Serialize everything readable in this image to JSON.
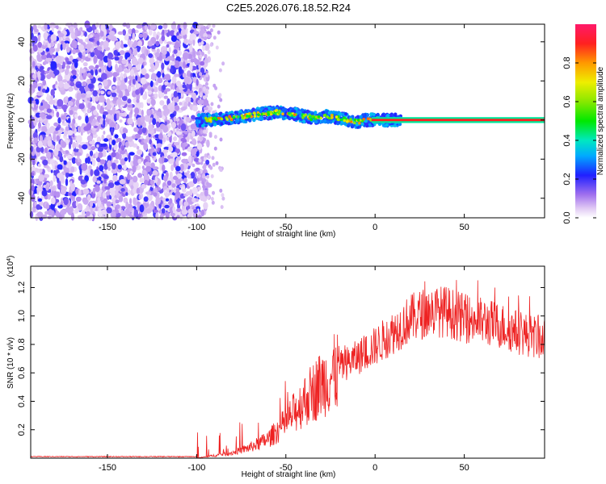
{
  "title": "C2E5.2026.076.18.52.R24",
  "chart_data": [
    {
      "type": "heatmap",
      "xlabel": "Height of straight line (km)",
      "ylabel": "Frequency (Hz)",
      "xlim": [
        -193,
        95
      ],
      "ylim": [
        -50,
        49
      ],
      "x_ticks": [
        "-150",
        "-100",
        "-50",
        "0",
        "50"
      ],
      "y_ticks": [
        "40",
        "20",
        "0",
        "-20",
        "-40"
      ],
      "colorbar": {
        "label": "Normalized spectral amplitude",
        "range": [
          0,
          1
        ],
        "ticks": [
          "0.0",
          "0.2",
          "0.4",
          "0.6",
          "0.8"
        ]
      },
      "ridge": {
        "description_points_x": [
          -95,
          -80,
          -65,
          -55,
          -45,
          -35,
          -28,
          -20,
          -10,
          -5,
          0,
          95
        ],
        "description_points_y": [
          0,
          1,
          3,
          4,
          3,
          1,
          2,
          1,
          -1,
          0,
          0,
          0
        ]
      }
    },
    {
      "type": "line",
      "xlabel": "Height of straight line (km)",
      "ylabel": "SNR (10 * v/v)",
      "exponent_label": "(x10",
      "exponent_sup": "4",
      "exponent_close": ")",
      "xlim": [
        -193,
        95
      ],
      "ylim": [
        0,
        1.35
      ],
      "x_ticks": [
        "-150",
        "-100",
        "-50",
        "0",
        "50"
      ],
      "y_ticks": [
        "0.2",
        "0.4",
        "0.6",
        "0.8",
        "1.0",
        "1.2"
      ],
      "series_color": "#ee2222",
      "envelope_x": [
        -193,
        -100,
        -90,
        -80,
        -70,
        -60,
        -50,
        -40,
        -30,
        -20,
        -10,
        0,
        10,
        20,
        30,
        40,
        50,
        60,
        70,
        80,
        95
      ],
      "envelope_y": [
        0.0,
        0.0,
        0.02,
        0.04,
        0.08,
        0.14,
        0.26,
        0.42,
        0.55,
        0.65,
        0.72,
        0.8,
        0.9,
        1.0,
        1.05,
        1.05,
        1.0,
        0.98,
        0.95,
        0.9,
        0.85
      ]
    }
  ]
}
